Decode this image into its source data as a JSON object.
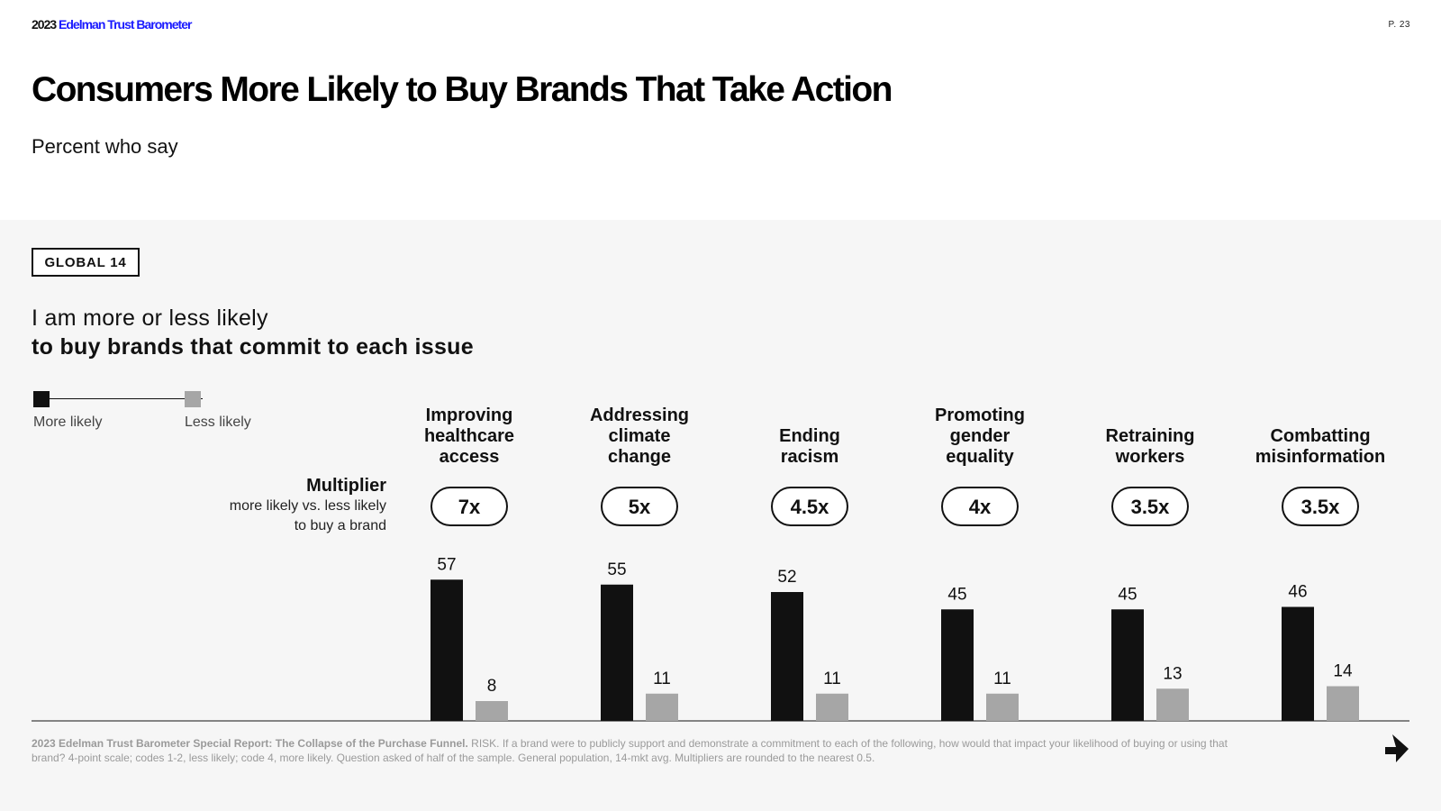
{
  "header": {
    "year": "2023",
    "brand": "Edelman Trust Barometer",
    "page": "P. 23"
  },
  "title": "Consumers More Likely to Buy Brands That Take Action",
  "subtitle": "Percent who say",
  "badge": "GLOBAL 14",
  "question": {
    "line1": "I am more or less likely",
    "line2": "to buy brands that commit to each issue"
  },
  "legend": {
    "more": "More likely",
    "less": "Less likely"
  },
  "multiplier": {
    "title": "Multiplier",
    "subtitle": "more likely vs. less likely to buy a brand"
  },
  "colors": {
    "more": "#111111",
    "less": "#a6a6a6",
    "brand_accent": "#1a1aff",
    "panel_bg": "#f6f6f6"
  },
  "chart_data": {
    "type": "bar",
    "title": "I am more or less likely to buy brands that commit to each issue",
    "ylabel": "Percent who say",
    "ylim": [
      0,
      57
    ],
    "grid": false,
    "legend": "top-left",
    "categories": [
      [
        "Improving",
        "healthcare",
        "access"
      ],
      [
        "Addressing",
        "climate",
        "change"
      ],
      [
        "Ending",
        "racism"
      ],
      [
        "Promoting",
        "gender",
        "equality"
      ],
      [
        "Retraining",
        "workers"
      ],
      [
        "Combatting",
        "misinformation"
      ]
    ],
    "multipliers": [
      "7x",
      "5x",
      "4.5x",
      "4x",
      "3.5x",
      "3.5x"
    ],
    "series": [
      {
        "name": "More likely",
        "values": [
          57,
          55,
          52,
          45,
          45,
          46
        ]
      },
      {
        "name": "Less likely",
        "values": [
          8,
          11,
          11,
          11,
          13,
          14
        ]
      }
    ]
  },
  "footnote": {
    "source": "2023 Edelman Trust Barometer Special Report: The Collapse of the Purchase Funnel.",
    "text": " RISK. If a brand were to publicly support and demonstrate a commitment to each of the following, how would that impact your likelihood of buying or using that brand? 4-point scale; codes 1-2, less likely; code 4, more likely. Question asked of half of the sample. General population, 14-mkt avg. Multipliers are rounded to the nearest 0.5."
  }
}
